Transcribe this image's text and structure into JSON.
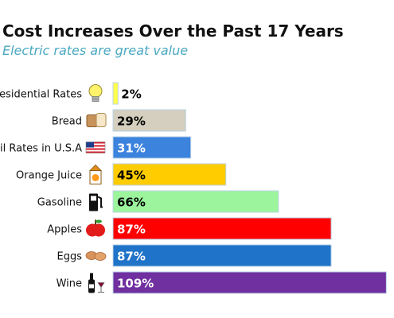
{
  "header": {
    "title": "Cost Increases Over the Past 17 Years",
    "subtitle": "Electric rates are great value"
  },
  "colors": {
    "subtitle": "#4aa8c0",
    "bars": [
      "#ffff4d",
      "#d4cfbe",
      "#3b83dd",
      "#ffcc00",
      "#9cf59c",
      "#ff0000",
      "#1f73c8",
      "#7030a0"
    ],
    "labels": [
      "#000000",
      "#000000",
      "#ffffff",
      "#000000",
      "#000000",
      "#ffffff",
      "#ffffff",
      "#ffffff"
    ]
  },
  "chart_data": {
    "type": "bar",
    "orientation": "horizontal",
    "title": "Cost Increases Over the Past 17 Years",
    "subtitle": "Electric rates are great value",
    "categories": [
      "L Residential Rates",
      "Bread",
      "etail Rates in U.S.A",
      "Orange Juice",
      "Gasoline",
      "Apples",
      "Eggs",
      "Wine"
    ],
    "values": [
      2,
      29,
      31,
      45,
      66,
      87,
      87,
      109
    ],
    "data_labels": [
      "2%",
      "29%",
      "31%",
      "45%",
      "66%",
      "87%",
      "87%",
      "109%"
    ],
    "icons": [
      "lightbulb-icon",
      "bread-icon",
      "us-flag-icon",
      "orange-juice-carton-icon",
      "gas-pump-icon",
      "apple-icon",
      "eggs-icon",
      "wine-icon"
    ],
    "xlabel": "",
    "ylabel": "",
    "grid": false,
    "legend": "none"
  }
}
